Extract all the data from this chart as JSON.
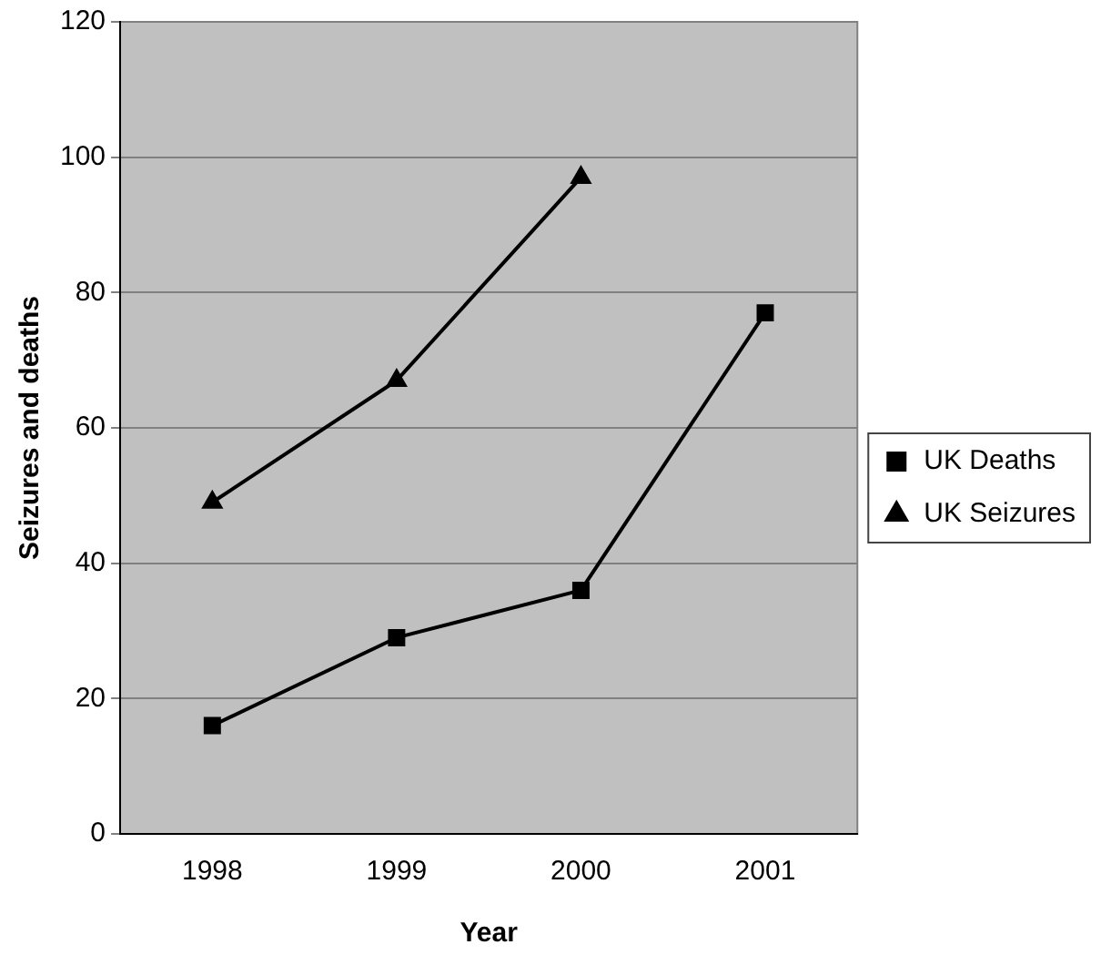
{
  "chart_data": {
    "type": "line",
    "xlabel": "Year",
    "ylabel": "Seizures and deaths",
    "categories": [
      "1998",
      "1999",
      "2000",
      "2001"
    ],
    "series": [
      {
        "name": "UK Deaths",
        "color": "#000000",
        "marker": "square",
        "values": [
          16,
          29,
          36,
          77
        ]
      },
      {
        "name": "UK Seizures",
        "color": "#000000",
        "marker": "triangle",
        "values": [
          49,
          67,
          97,
          null
        ]
      }
    ],
    "ylim": [
      0,
      120
    ],
    "yticks": [
      0,
      20,
      40,
      60,
      80,
      100,
      120
    ],
    "grid": "y",
    "legend": "right",
    "line_style": "solid"
  }
}
